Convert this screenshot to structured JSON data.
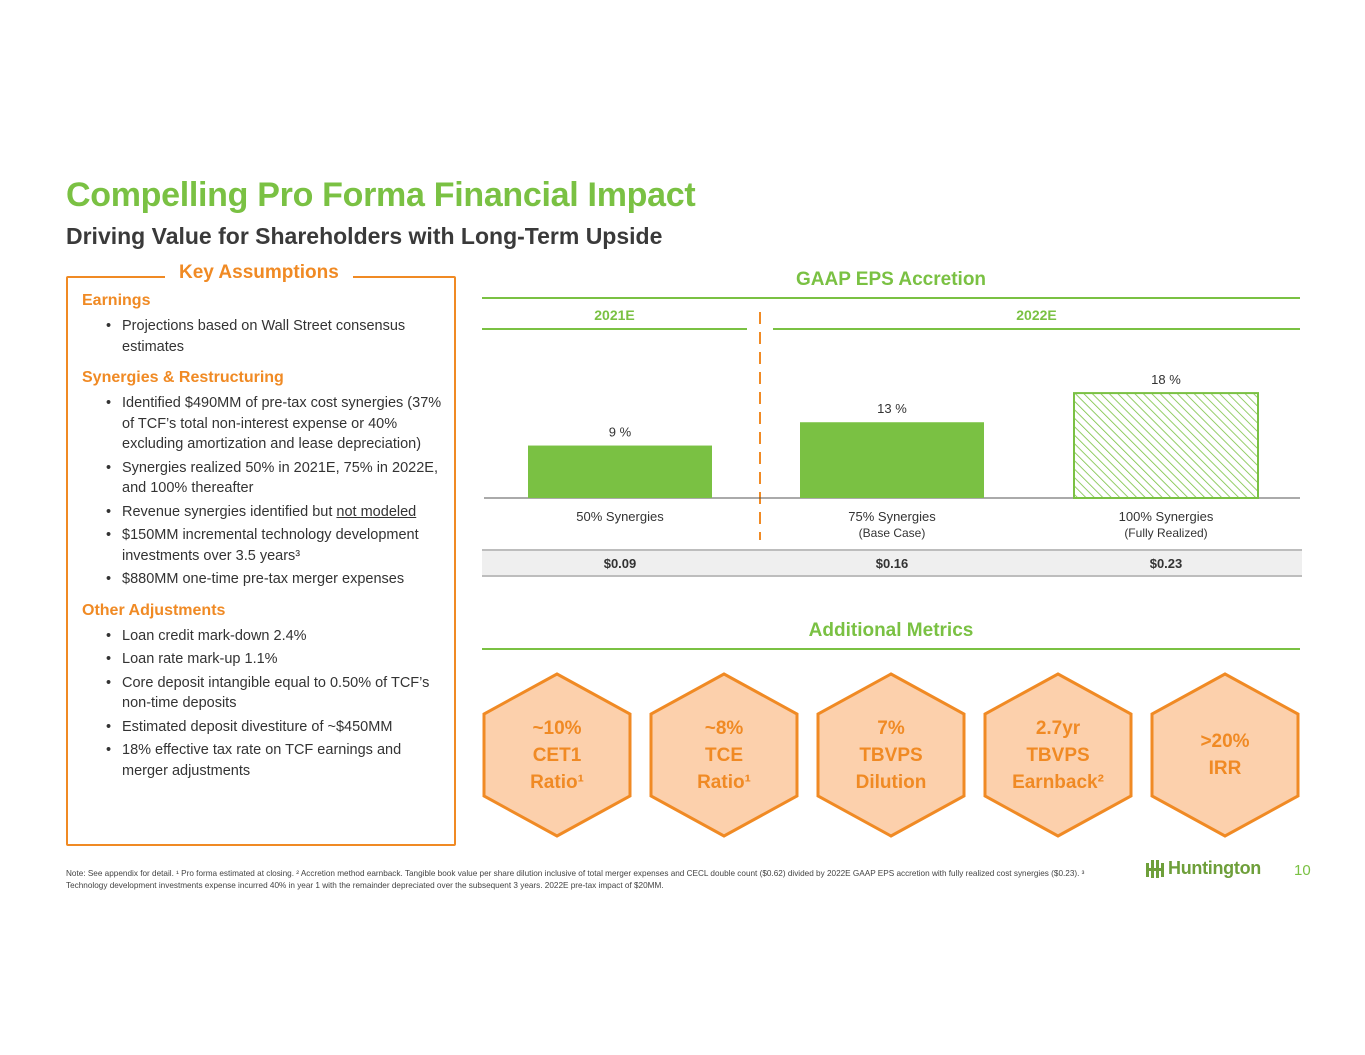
{
  "header": {
    "title": "Compelling Pro Forma Financial Impact",
    "subtitle": "Driving Value for Shareholders with Long-Term Upside"
  },
  "key_assumptions": {
    "title": "Key Assumptions",
    "sections": [
      {
        "heading": "Earnings",
        "items": [
          "Projections based on Wall Street consensus estimates"
        ]
      },
      {
        "heading": "Synergies & Restructuring",
        "items": [
          "Identified $490MM of pre-tax cost synergies (37% of TCF’s total non-interest expense or 40% excluding amortization and lease depreciation)",
          "Synergies realized 50% in 2021E, 75% in 2022E, and 100% thereafter",
          "Revenue synergies identified but ",
          "$150MM incremental technology development investments over 3.5 years³",
          "$880MM one-time pre-tax merger expenses"
        ],
        "underlined_suffix": "not modeled"
      },
      {
        "heading": "Other Adjustments",
        "items": [
          "Loan credit mark-down 2.4%",
          "Loan rate mark-up 1.1%",
          "Core deposit intangible equal to 0.50% of TCF’s non-time deposits",
          "Estimated deposit divestiture of ~$450MM",
          "18% effective tax rate on TCF earnings and merger adjustments"
        ]
      }
    ]
  },
  "eps": {
    "title": "GAAP EPS Accretion",
    "year_2021": "2021E",
    "year_2022": "2022E",
    "dollar_values": [
      "$0.09",
      "$0.16",
      "$0.23"
    ]
  },
  "chart_data": {
    "type": "bar",
    "title": "GAAP EPS Accretion",
    "categories": [
      "50% Synergies",
      "75% Synergies",
      "100% Synergies"
    ],
    "category_sublabels": [
      "",
      "(Base Case)",
      "(Fully Realized)"
    ],
    "values": [
      9,
      13,
      18
    ],
    "value_labels": [
      "9 %",
      "13 %",
      "18 %"
    ],
    "groups": [
      {
        "label": "2021E",
        "categories": [
          "50% Synergies"
        ]
      },
      {
        "label": "2022E",
        "categories": [
          "75% Synergies",
          "100% Synergies"
        ]
      }
    ],
    "bar_styles": [
      "solid",
      "solid",
      "hatched"
    ],
    "ylim": [
      0,
      20
    ],
    "colors": {
      "bar": "#7ac143",
      "hatch": "#7ac143"
    },
    "grid": false
  },
  "metrics": {
    "title": "Additional Metrics",
    "items": [
      {
        "lines": [
          "~10%",
          "CET1",
          "Ratio¹"
        ]
      },
      {
        "lines": [
          "~8%",
          "TCE",
          "Ratio¹"
        ]
      },
      {
        "lines": [
          "7%",
          "TBVPS",
          "Dilution"
        ]
      },
      {
        "lines": [
          "2.7yr",
          "TBVPS",
          "Earnback²"
        ]
      },
      {
        "lines": [
          ">20%",
          "IRR"
        ]
      }
    ]
  },
  "footer": {
    "note": "Note: See appendix for detail. ¹ Pro forma estimated at closing. ² Accretion method earnback. Tangible book value per share dilution inclusive of total merger expenses and CECL double count ($0.62) divided by 2022E GAAP EPS accretion with fully realized cost synergies ($0.23). ³ Technology development investments expense incurred 40% in year 1 with the remainder depreciated over the subsequent 3 years. 2022E pre-tax impact of $20MM.",
    "logo_text": "Huntington",
    "page_number": "10"
  },
  "colors": {
    "green": "#7ac143",
    "orange": "#f08a24",
    "hex_fill": "#fcd0ac"
  }
}
